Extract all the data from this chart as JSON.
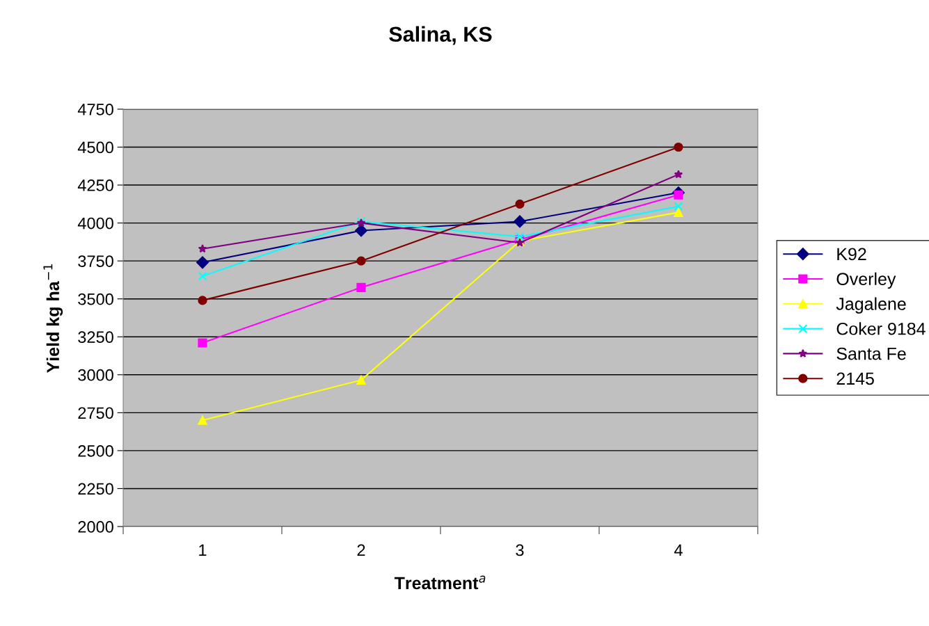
{
  "chart_data": {
    "type": "line",
    "title": "Salina, KS",
    "xlabel": "Treatment$^{a}$",
    "ylabel": "Yield kg ha$^{−1}$",
    "categories": [
      "1",
      "2",
      "3",
      "4"
    ],
    "series": [
      {
        "name": "K92",
        "color": "#000080",
        "marker": "diamond",
        "values": [
          3740,
          3950,
          4010,
          4200
        ]
      },
      {
        "name": "Overley",
        "color": "#ff00ff",
        "marker": "square",
        "values": [
          3210,
          3575,
          3890,
          4185
        ]
      },
      {
        "name": "Jagalene",
        "color": "#ffff00",
        "marker": "triangle",
        "values": [
          2700,
          2965,
          3880,
          4070
        ]
      },
      {
        "name": "Coker 9184",
        "color": "#00ffff",
        "marker": "cross",
        "values": [
          3650,
          4010,
          3910,
          4110
        ]
      },
      {
        "name": "Santa Fe",
        "color": "#800080",
        "marker": "star",
        "values": [
          3830,
          4000,
          3870,
          4320
        ]
      },
      {
        "name": "2145",
        "color": "#800000",
        "marker": "circle",
        "values": [
          3490,
          3750,
          4125,
          4500
        ]
      }
    ],
    "ylim": [
      2000,
      4750
    ],
    "yticks": [
      2000,
      2250,
      2500,
      2750,
      3000,
      3250,
      3500,
      3750,
      4000,
      4250,
      4500,
      4750
    ],
    "grid": "y",
    "legend": "right",
    "line_style": "solid"
  }
}
